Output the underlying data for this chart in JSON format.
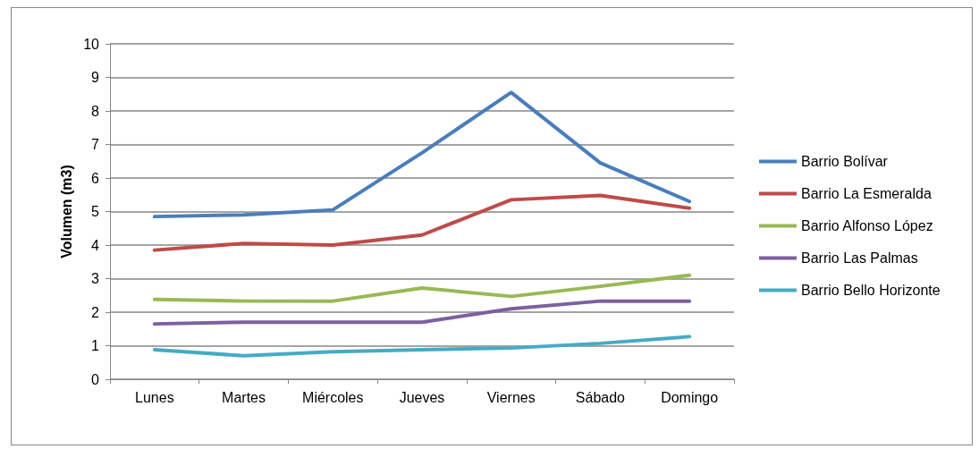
{
  "chart_data": {
    "type": "line",
    "ylabel": "Volumen (m3)",
    "categories": [
      "Lunes",
      "Martes",
      "Miércoles",
      "Jueves",
      "Viernes",
      "Sábado",
      "Domingo"
    ],
    "ylim": [
      0,
      10
    ],
    "yticks": [
      0,
      1,
      2,
      3,
      4,
      5,
      6,
      7,
      8,
      9,
      10
    ],
    "grid": "y",
    "legend": "right",
    "marker": "none",
    "line_style": "solid",
    "series": [
      {
        "name": "Barrio Bolívar",
        "color": "#4a7ebb",
        "values": [
          4.85,
          4.9,
          5.05,
          6.75,
          8.55,
          6.45,
          5.3
        ]
      },
      {
        "name": "Barrio La Esmeralda",
        "color": "#be4b48",
        "values": [
          3.85,
          4.05,
          4.0,
          4.3,
          5.35,
          5.48,
          5.1
        ]
      },
      {
        "name": "Barrio Alfonso López",
        "color": "#98b954",
        "values": [
          2.38,
          2.33,
          2.33,
          2.72,
          2.47,
          2.77,
          3.1
        ]
      },
      {
        "name": "Barrio Las Palmas",
        "color": "#7d60a0",
        "values": [
          1.65,
          1.7,
          1.7,
          1.7,
          2.1,
          2.33,
          2.33
        ]
      },
      {
        "name": "Barrio Bello Horizonte",
        "color": "#46aac5",
        "values": [
          0.88,
          0.7,
          0.82,
          0.88,
          0.93,
          1.07,
          1.27
        ]
      }
    ]
  }
}
